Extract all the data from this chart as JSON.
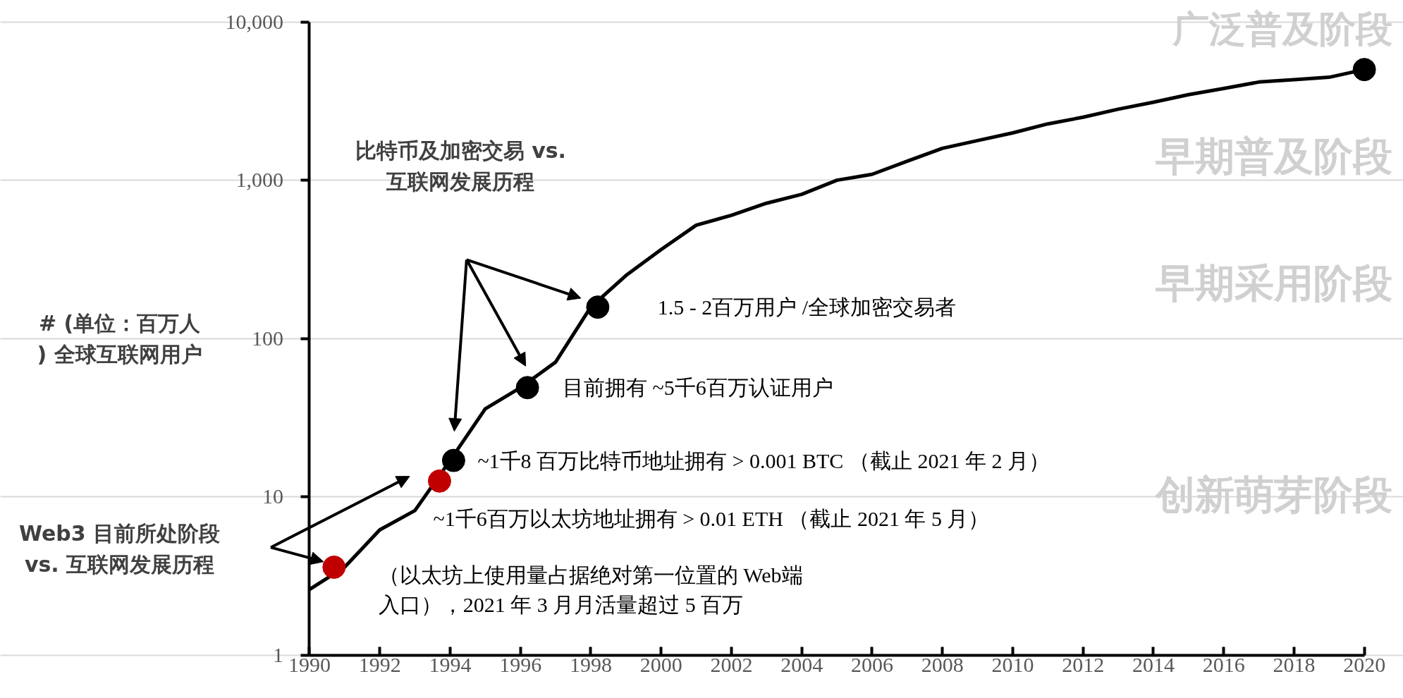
{
  "chart_data": {
    "type": "line",
    "ylabel": "# (单位：百万人) 全球互联网用户",
    "log": "y",
    "grid": "y",
    "xlim": [
      1990,
      2020
    ],
    "xticks": [
      1990,
      1992,
      1994,
      1996,
      1998,
      2000,
      2002,
      2004,
      2006,
      2008,
      2010,
      2012,
      2014,
      2016,
      2018,
      2020
    ],
    "ylim": [
      1,
      10000
    ],
    "yticks": [
      {
        "value": 1,
        "label": "1"
      },
      {
        "value": 10,
        "label": "10"
      },
      {
        "value": 100,
        "label": "100"
      },
      {
        "value": 1000,
        "label": "1,000"
      },
      {
        "value": 10000,
        "label": "10,000"
      }
    ],
    "series": [
      {
        "color": "#000000",
        "marker": "none",
        "line_style": "solid",
        "x": [
          1990,
          1991,
          1992,
          1993,
          1994,
          1995,
          1996,
          1997,
          1998,
          1999,
          2000,
          2001,
          2002,
          2003,
          2004,
          2005,
          2006,
          2007,
          2008,
          2009,
          2010,
          2011,
          2012,
          2013,
          2014,
          2015,
          2016,
          2017,
          2018,
          2019,
          2020
        ],
        "values": [
          2.6,
          3.6,
          6.2,
          8.2,
          17,
          36,
          49,
          71,
          158,
          250,
          365,
          520,
          600,
          716,
          815,
          1000,
          1090,
          1320,
          1590,
          1780,
          1990,
          2270,
          2500,
          2810,
          3110,
          3470,
          3800,
          4170,
          4320,
          4470,
          5000
        ]
      },
      {
        "type": "scatter",
        "color": "#000000",
        "marker": "circle",
        "x": [
          1994.1,
          1996.2,
          1998.2,
          2020
        ],
        "values": [
          17,
          49,
          158,
          5000
        ]
      },
      {
        "type": "scatter",
        "color": "#c00000",
        "marker": "circle",
        "x": [
          1990.7,
          1993.7
        ],
        "values": [
          3.6,
          12.6
        ]
      }
    ],
    "annotations": [
      {
        "text": "1.5 - 2百万用户 /全球加密交易者",
        "x": 1998.2,
        "y": 158
      },
      {
        "text": "目前拥有 ~5千6百万认证用户",
        "x": 1996.2,
        "y": 49
      },
      {
        "text": "~1千8 百万比特币地址拥有 > 0.001 BTC （截止 2021 年 2 月）",
        "x": 1994.1,
        "y": 17
      },
      {
        "text": "~1千6百万以太坊地址拥有 > 0.01 ETH （截止 2021 年 5 月）",
        "x": 1993.7,
        "y": 12.6
      },
      {
        "text": "（以太坊上使用量占据绝对第一位置的 Web端入口），2021 年 3 月月活量超过 5 百万",
        "x": 1990.7,
        "y": 3.6
      },
      "比特币及加密交易 vs.\n互联网发展历程",
      "Web3 目前所处阶段\nvs. 互联网发展历程",
      "广泛普及阶段",
      "早期普及阶段",
      "早期采用阶段",
      "创新萌芽阶段"
    ]
  }
}
